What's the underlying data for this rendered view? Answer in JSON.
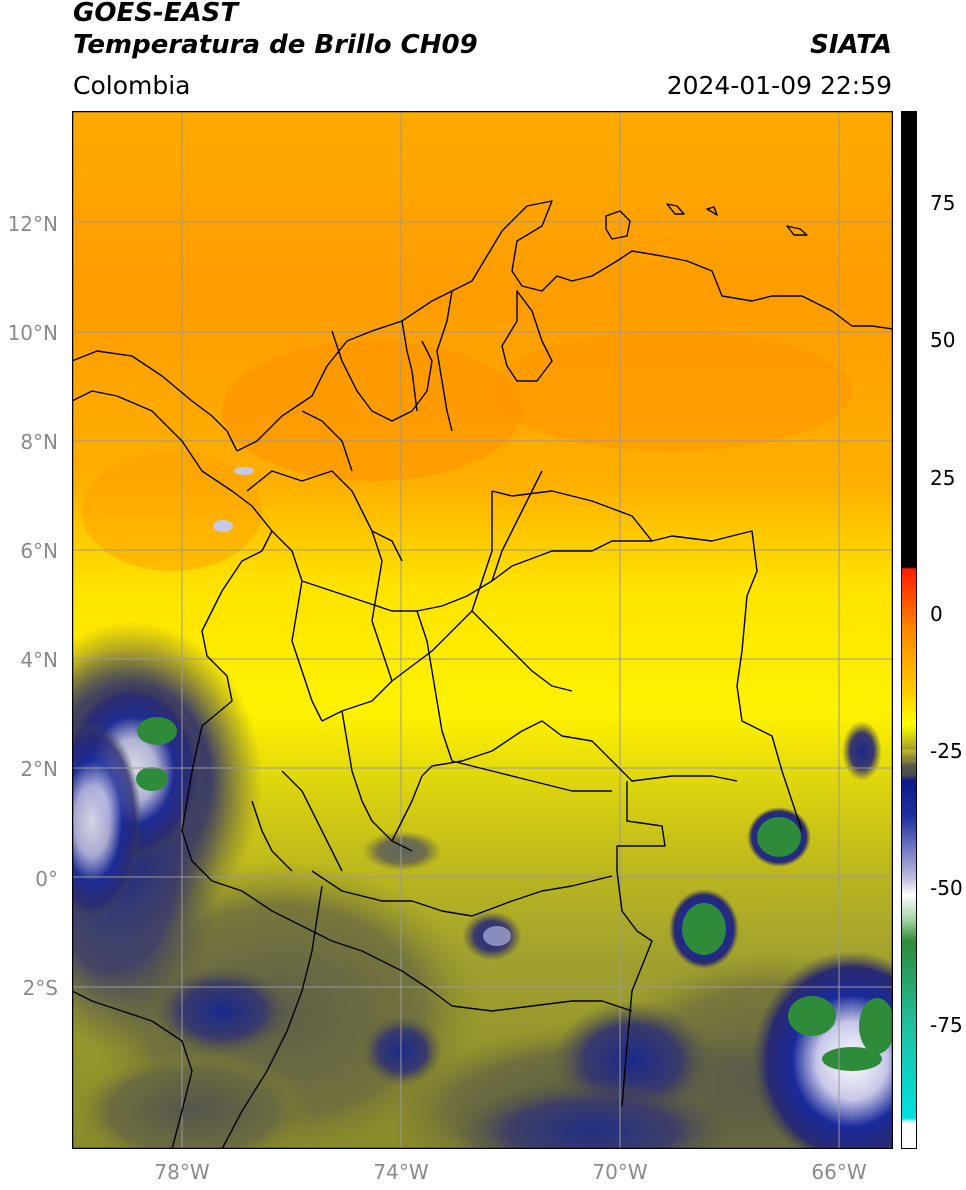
{
  "header": {
    "title_line1": "GOES-EAST",
    "title_line2": "Temperatura de Brillo CH09",
    "source": "SIATA",
    "region": "Colombia",
    "datetime": "2024-01-09 22:59"
  },
  "map": {
    "lat_labels": [
      "12°N",
      "10°N",
      "8°N",
      "6°N",
      "4°N",
      "2°N",
      "0°",
      "2°S"
    ],
    "lon_labels": [
      "78°W",
      "74°W",
      "70°W",
      "66°W"
    ],
    "gridline_color": "#9a9a9a",
    "border_color": "#000000"
  },
  "colorbar": {
    "ticks": [
      "75",
      "50",
      "25",
      "0",
      "-25",
      "-50",
      "-75"
    ],
    "colors": {
      "black": "#000000",
      "red": "#ff1a00",
      "orange": "#ff9900",
      "yellow": "#ffee00",
      "olive": "#9a9a30",
      "gray": "#4a4a4a",
      "navy": "#0a1a8a",
      "white": "#ffffff",
      "green": "#2e8b3a",
      "teal": "#20c0a0",
      "cyan": "#00e0e0"
    }
  }
}
